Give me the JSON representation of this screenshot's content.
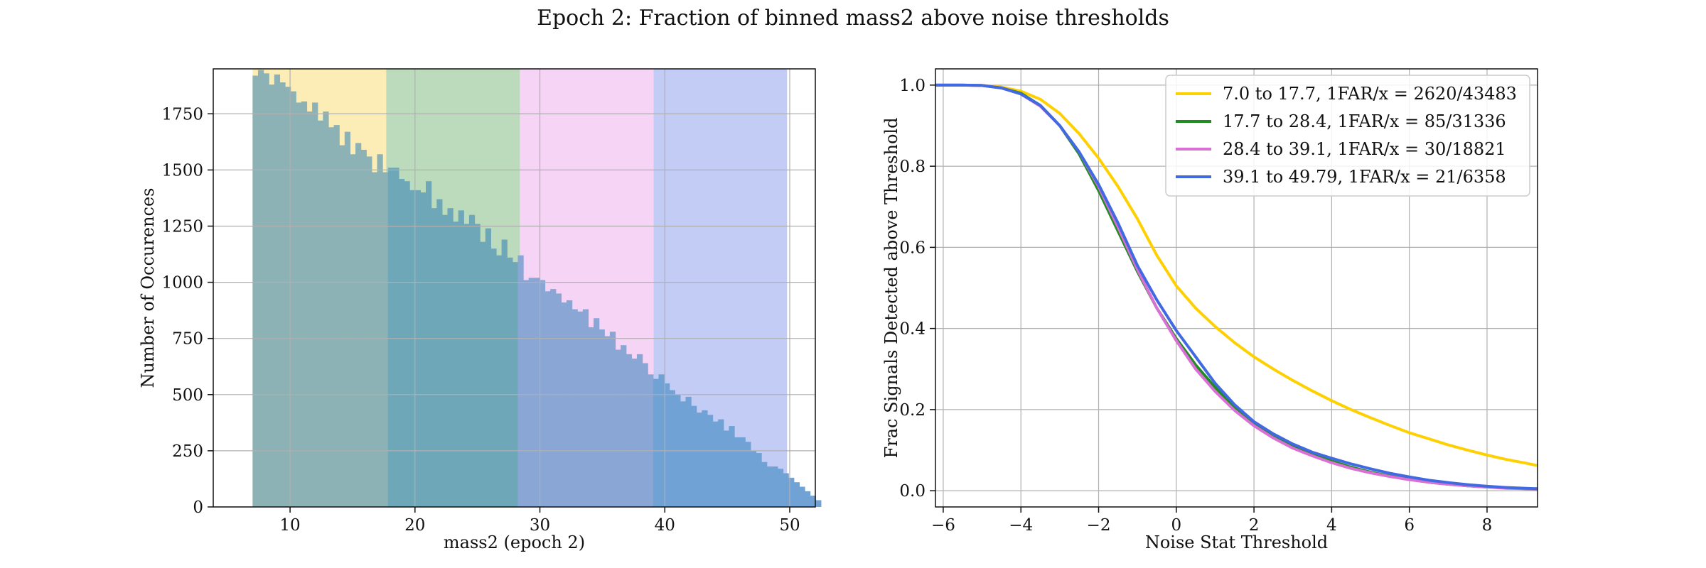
{
  "suptitle": "Epoch 2: Fraction of binned mass2 above noise thresholds",
  "chart_data": [
    {
      "type": "bar",
      "subtype": "histogram",
      "xlabel": "mass2 (epoch 2)",
      "ylabel": "Number of Occurences",
      "xlim": [
        3.85,
        52.05
      ],
      "ylim": [
        0,
        1950
      ],
      "xticks": [
        10,
        20,
        30,
        40,
        50
      ],
      "yticks": [
        0,
        250,
        500,
        750,
        1000,
        1250,
        1500,
        1750
      ],
      "grid": true,
      "bin_start": 7.0,
      "bin_width": 0.4333,
      "counts": [
        1920,
        1945,
        1930,
        1880,
        1925,
        1890,
        1870,
        1850,
        1800,
        1805,
        1760,
        1800,
        1720,
        1760,
        1690,
        1700,
        1610,
        1670,
        1570,
        1620,
        1590,
        1560,
        1490,
        1570,
        1490,
        1510,
        1510,
        1460,
        1450,
        1410,
        1410,
        1400,
        1450,
        1330,
        1370,
        1300,
        1330,
        1270,
        1320,
        1260,
        1300,
        1260,
        1180,
        1240,
        1150,
        1120,
        1190,
        1110,
        1090,
        1120,
        1010,
        1020,
        1020,
        1010,
        960,
        970,
        950,
        910,
        920,
        880,
        870,
        880,
        800,
        840,
        790,
        760,
        780,
        700,
        720,
        680,
        660,
        680,
        640,
        590,
        570,
        590,
        550,
        520,
        500,
        470,
        490,
        450,
        420,
        430,
        410,
        380,
        390,
        340,
        360,
        310,
        310,
        290,
        250,
        240,
        200,
        180,
        180,
        170,
        150,
        130,
        110,
        90,
        70,
        50,
        30
      ],
      "bins": [
        {
          "range": [
            7.0,
            17.7
          ],
          "color": "#f5c518"
        },
        {
          "range": [
            17.7,
            28.4
          ],
          "color": "#2e8b2e"
        },
        {
          "range": [
            28.4,
            39.1
          ],
          "color": "#e07ae0"
        },
        {
          "range": [
            39.1,
            49.79
          ],
          "color": "#4060e0"
        }
      ]
    },
    {
      "type": "line",
      "xlabel": "Noise Stat Threshold",
      "ylabel": "Frac Signals Detected above Threshold",
      "xlim": [
        -6.2,
        9.3
      ],
      "ylim": [
        -0.04,
        1.04
      ],
      "xticks": [
        -6,
        -4,
        -2,
        0,
        2,
        4,
        6,
        8
      ],
      "yticks": [
        0.0,
        0.2,
        0.4,
        0.6,
        0.8,
        1.0
      ],
      "grid": true,
      "legend_position": "top-right",
      "x": [
        -6.2,
        -5.5,
        -5,
        -4.5,
        -4,
        -3.5,
        -3,
        -2.5,
        -2,
        -1.5,
        -1,
        -0.5,
        0,
        0.5,
        1,
        1.5,
        2,
        2.5,
        3,
        3.5,
        4,
        4.5,
        5,
        5.5,
        6,
        6.5,
        7,
        7.5,
        8,
        8.5,
        9,
        9.3
      ],
      "series": [
        {
          "name": "7.0 to 17.7, 1FAR/x = 2620/43483",
          "color": "#ffd000",
          "values": [
            1.0,
            1.0,
            0.999,
            0.995,
            0.985,
            0.965,
            0.93,
            0.88,
            0.82,
            0.75,
            0.67,
            0.58,
            0.505,
            0.45,
            0.405,
            0.365,
            0.33,
            0.3,
            0.272,
            0.246,
            0.222,
            0.2,
            0.18,
            0.161,
            0.143,
            0.128,
            0.113,
            0.1,
            0.088,
            0.077,
            0.068,
            0.062
          ]
        },
        {
          "name": "17.7 to 28.4, 1FAR/x = 85/31336",
          "color": "#228b22",
          "values": [
            1.0,
            1.0,
            0.999,
            0.993,
            0.98,
            0.95,
            0.9,
            0.83,
            0.74,
            0.64,
            0.54,
            0.45,
            0.375,
            0.31,
            0.255,
            0.205,
            0.165,
            0.135,
            0.11,
            0.09,
            0.073,
            0.058,
            0.046,
            0.036,
            0.028,
            0.021,
            0.016,
            0.012,
            0.009,
            0.007,
            0.005,
            0.004
          ]
        },
        {
          "name": "28.4 to 39.1, 1FAR/x = 30/18821",
          "color": "#da70d6",
          "values": [
            1.0,
            1.0,
            0.999,
            0.993,
            0.978,
            0.948,
            0.9,
            0.835,
            0.75,
            0.65,
            0.545,
            0.45,
            0.37,
            0.3,
            0.245,
            0.198,
            0.16,
            0.13,
            0.105,
            0.086,
            0.069,
            0.055,
            0.044,
            0.035,
            0.027,
            0.021,
            0.016,
            0.012,
            0.009,
            0.006,
            0.005,
            0.004
          ]
        },
        {
          "name": "39.1 to 49.79, 1FAR/x = 21/6358",
          "color": "#4169e1",
          "values": [
            1.0,
            1.0,
            0.999,
            0.993,
            0.978,
            0.95,
            0.9,
            0.835,
            0.755,
            0.66,
            0.555,
            0.47,
            0.395,
            0.33,
            0.265,
            0.212,
            0.17,
            0.14,
            0.115,
            0.095,
            0.08,
            0.066,
            0.054,
            0.043,
            0.034,
            0.026,
            0.02,
            0.015,
            0.011,
            0.008,
            0.006,
            0.005
          ]
        }
      ]
    }
  ]
}
